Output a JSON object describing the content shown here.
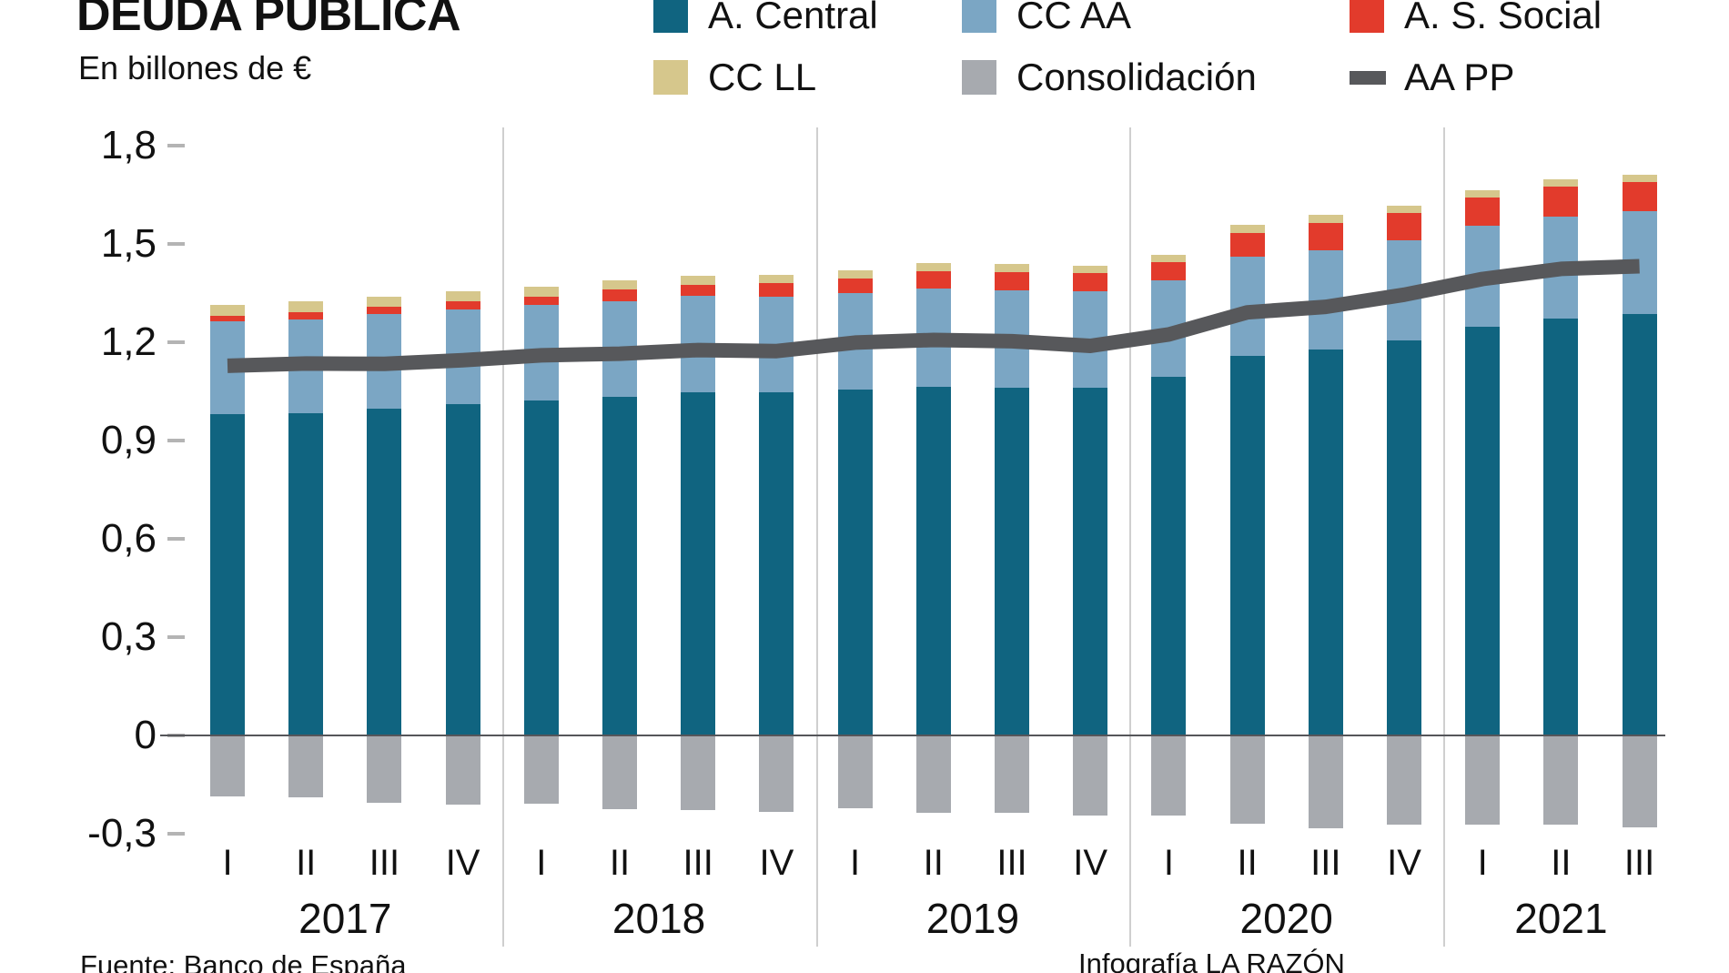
{
  "header": {
    "title": "DEUDA PÚBLICA",
    "subtitle": "En billones de €"
  },
  "legend": {
    "items": [
      {
        "label": "A. Central",
        "color": "#106480",
        "shape": "square"
      },
      {
        "label": "CC AA",
        "color": "#7ba6c4",
        "shape": "square"
      },
      {
        "label": "A. S. Social",
        "color": "#e23b2c",
        "shape": "square"
      },
      {
        "label": "CC LL",
        "color": "#d6c78c",
        "shape": "square"
      },
      {
        "label": "Consolidación",
        "color": "#a7aaaf",
        "shape": "square"
      },
      {
        "label": "AA PP",
        "color": "#57585b",
        "shape": "dash"
      }
    ]
  },
  "footer": {
    "source": "Fuente: Banco de España",
    "credit": "Infografía LA RAZÓN"
  },
  "chart_data": {
    "type": "bar",
    "subtype": "stacked-bars-with-line-overlay",
    "title": "DEUDA PÚBLICA",
    "unit_label": "En billones de €",
    "ylim": [
      -0.3,
      1.8
    ],
    "grid": "vertical-year-separators-only",
    "legend_position": "top",
    "yticks": [
      {
        "value": 1.8,
        "label": "1,8"
      },
      {
        "value": 1.5,
        "label": "1,5"
      },
      {
        "value": 1.2,
        "label": "1,2"
      },
      {
        "value": 0.9,
        "label": "0,9"
      },
      {
        "value": 0.6,
        "label": "0,6"
      },
      {
        "value": 0.3,
        "label": "0,3"
      },
      {
        "value": 0,
        "label": "0"
      },
      {
        "value": -0.3,
        "label": "-0,3"
      }
    ],
    "years": [
      {
        "label": "2017",
        "quarters": [
          "I",
          "II",
          "III",
          "IV"
        ]
      },
      {
        "label": "2018",
        "quarters": [
          "I",
          "II",
          "III",
          "IV"
        ]
      },
      {
        "label": "2019",
        "quarters": [
          "I",
          "II",
          "III",
          "IV"
        ]
      },
      {
        "label": "2020",
        "quarters": [
          "I",
          "II",
          "III",
          "IV"
        ]
      },
      {
        "label": "2021",
        "quarters": [
          "I",
          "II",
          "III"
        ]
      }
    ],
    "series": [
      {
        "name": "A. Central",
        "color": "#106480",
        "values": [
          0.98,
          0.983,
          0.997,
          1.011,
          1.023,
          1.034,
          1.048,
          1.047,
          1.056,
          1.065,
          1.061,
          1.061,
          1.094,
          1.158,
          1.177,
          1.206,
          1.247,
          1.273,
          1.287
        ]
      },
      {
        "name": "CC AA",
        "color": "#7ba6c4",
        "values": [
          0.285,
          0.287,
          0.288,
          0.288,
          0.29,
          0.292,
          0.293,
          0.293,
          0.295,
          0.3,
          0.297,
          0.295,
          0.296,
          0.302,
          0.303,
          0.304,
          0.309,
          0.31,
          0.312
        ]
      },
      {
        "name": "A. S. Social",
        "color": "#e23b2c",
        "values": [
          0.017,
          0.023,
          0.023,
          0.027,
          0.027,
          0.034,
          0.035,
          0.041,
          0.043,
          0.052,
          0.055,
          0.055,
          0.055,
          0.074,
          0.085,
          0.085,
          0.086,
          0.092,
          0.091
        ]
      },
      {
        "name": "CC LL",
        "color": "#d6c78c",
        "values": [
          0.032,
          0.032,
          0.031,
          0.029,
          0.029,
          0.029,
          0.028,
          0.026,
          0.026,
          0.026,
          0.025,
          0.023,
          0.023,
          0.025,
          0.025,
          0.022,
          0.022,
          0.022,
          0.022
        ]
      },
      {
        "name": "Consolidación",
        "color": "#a7aaaf",
        "values": [
          -0.186,
          -0.19,
          -0.205,
          -0.21,
          -0.209,
          -0.224,
          -0.228,
          -0.234,
          -0.221,
          -0.236,
          -0.235,
          -0.245,
          -0.244,
          -0.268,
          -0.282,
          -0.272,
          -0.271,
          -0.273,
          -0.28
        ]
      }
    ],
    "line_series": {
      "name": "AA PP",
      "color": "#57585b",
      "values": [
        1.128,
        1.135,
        1.134,
        1.145,
        1.16,
        1.165,
        1.176,
        1.173,
        1.199,
        1.207,
        1.203,
        1.189,
        1.224,
        1.291,
        1.308,
        1.345,
        1.393,
        1.424,
        1.432
      ]
    }
  }
}
